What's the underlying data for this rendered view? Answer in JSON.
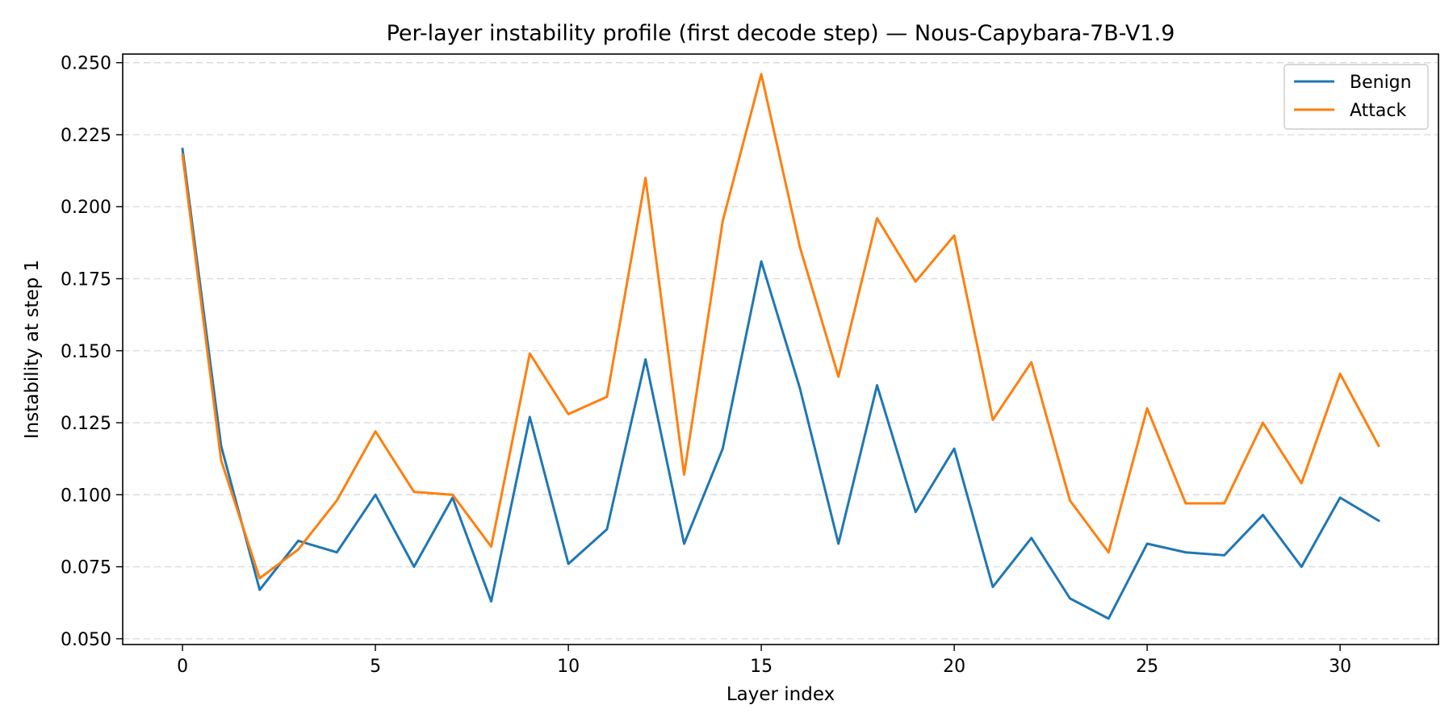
{
  "chart_data": {
    "type": "line",
    "title": "Per-layer instability profile (first decode step) — Nous-Capybara-7B-V1.9",
    "xlabel": "Layer index",
    "ylabel": "Instability at step 1",
    "xlim": [
      -1.55,
      32.55
    ],
    "ylim": [
      0.048,
      0.253
    ],
    "xticks": [
      0,
      5,
      10,
      15,
      20,
      25,
      30
    ],
    "xtick_labels": [
      "0",
      "5",
      "10",
      "15",
      "20",
      "25",
      "30"
    ],
    "yticks": [
      0.05,
      0.075,
      0.1,
      0.125,
      0.15,
      0.175,
      0.2,
      0.225,
      0.25
    ],
    "ytick_labels": [
      "0.050",
      "0.075",
      "0.100",
      "0.125",
      "0.150",
      "0.175",
      "0.200",
      "0.225",
      "0.250"
    ],
    "grid": "y-dashed",
    "legend_position": "top-right",
    "x": [
      0,
      1,
      2,
      3,
      4,
      5,
      6,
      7,
      8,
      9,
      10,
      11,
      12,
      13,
      14,
      15,
      16,
      17,
      18,
      19,
      20,
      21,
      22,
      23,
      24,
      25,
      26,
      27,
      28,
      29,
      30,
      31
    ],
    "series": [
      {
        "name": "Benign",
        "color": "#1f77b4",
        "values": [
          0.22,
          0.117,
          0.067,
          0.084,
          0.08,
          0.1,
          0.075,
          0.099,
          0.063,
          0.127,
          0.076,
          0.088,
          0.147,
          0.083,
          0.116,
          0.181,
          0.137,
          0.083,
          0.138,
          0.094,
          0.116,
          0.068,
          0.085,
          0.064,
          0.057,
          0.083,
          0.08,
          0.079,
          0.093,
          0.075,
          0.099,
          0.091
        ]
      },
      {
        "name": "Attack",
        "color": "#ff7f0e",
        "values": [
          0.218,
          0.112,
          0.071,
          0.081,
          0.098,
          0.122,
          0.101,
          0.1,
          0.082,
          0.149,
          0.128,
          0.134,
          0.21,
          0.107,
          0.195,
          0.246,
          0.186,
          0.141,
          0.196,
          0.174,
          0.19,
          0.126,
          0.146,
          0.098,
          0.08,
          0.13,
          0.097,
          0.097,
          0.125,
          0.104,
          0.142,
          0.117
        ]
      }
    ]
  }
}
